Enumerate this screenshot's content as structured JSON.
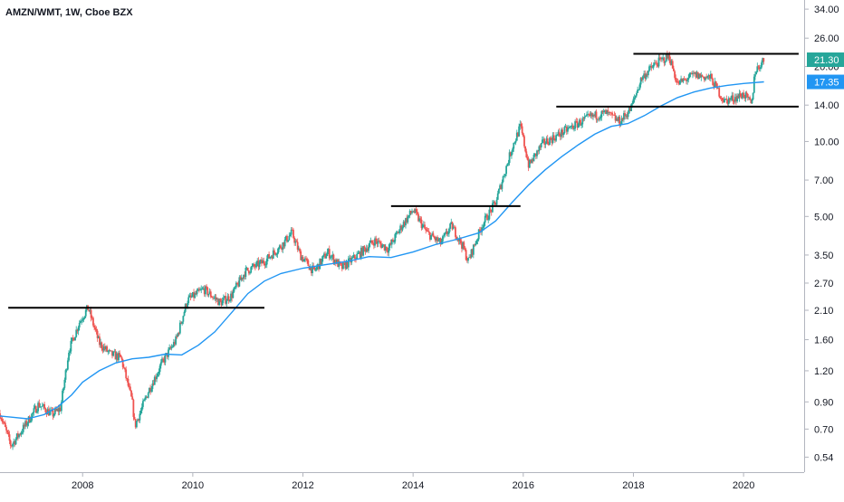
{
  "chart_data": {
    "type": "candlestick",
    "title": "AMZN/WMT, 1W, Cboe BZX",
    "xlabel": "",
    "ylabel": "",
    "scale": "log",
    "ylim": [
      0.47,
      37
    ],
    "xlim": [
      2006.5,
      2021.1
    ],
    "y_ticks": [
      "34.00",
      "26.00",
      "20.00",
      "14.00",
      "10.00",
      "7.00",
      "5.00",
      "3.50",
      "2.70",
      "2.10",
      "1.60",
      "1.20",
      "0.90",
      "0.70",
      "0.54"
    ],
    "x_ticks": [
      "2008",
      "2010",
      "2012",
      "2014",
      "2016",
      "2018",
      "2020"
    ],
    "grid": false,
    "price_series": [
      {
        "x": 2006.5,
        "y": 0.81
      },
      {
        "x": 2006.7,
        "y": 0.6
      },
      {
        "x": 2006.95,
        "y": 0.72
      },
      {
        "x": 2007.2,
        "y": 0.88
      },
      {
        "x": 2007.45,
        "y": 0.8
      },
      {
        "x": 2007.6,
        "y": 0.85
      },
      {
        "x": 2007.75,
        "y": 1.45
      },
      {
        "x": 2007.95,
        "y": 1.9
      },
      {
        "x": 2008.1,
        "y": 2.15
      },
      {
        "x": 2008.3,
        "y": 1.55
      },
      {
        "x": 2008.5,
        "y": 1.4
      },
      {
        "x": 2008.7,
        "y": 1.35
      },
      {
        "x": 2008.9,
        "y": 0.9
      },
      {
        "x": 2008.95,
        "y": 0.72
      },
      {
        "x": 2009.2,
        "y": 1.0
      },
      {
        "x": 2009.45,
        "y": 1.3
      },
      {
        "x": 2009.7,
        "y": 1.6
      },
      {
        "x": 2009.9,
        "y": 2.3
      },
      {
        "x": 2010.2,
        "y": 2.55
      },
      {
        "x": 2010.5,
        "y": 2.25
      },
      {
        "x": 2010.7,
        "y": 2.4
      },
      {
        "x": 2010.95,
        "y": 3.0
      },
      {
        "x": 2011.3,
        "y": 3.3
      },
      {
        "x": 2011.6,
        "y": 3.8
      },
      {
        "x": 2011.8,
        "y": 4.3
      },
      {
        "x": 2011.95,
        "y": 3.5
      },
      {
        "x": 2012.2,
        "y": 3.0
      },
      {
        "x": 2012.45,
        "y": 3.6
      },
      {
        "x": 2012.7,
        "y": 3.1
      },
      {
        "x": 2013.0,
        "y": 3.5
      },
      {
        "x": 2013.3,
        "y": 4.0
      },
      {
        "x": 2013.55,
        "y": 3.7
      },
      {
        "x": 2013.8,
        "y": 4.6
      },
      {
        "x": 2014.0,
        "y": 5.3
      },
      {
        "x": 2014.25,
        "y": 4.3
      },
      {
        "x": 2014.5,
        "y": 3.9
      },
      {
        "x": 2014.7,
        "y": 4.6
      },
      {
        "x": 2014.9,
        "y": 3.8
      },
      {
        "x": 2015.0,
        "y": 3.3
      },
      {
        "x": 2015.25,
        "y": 4.6
      },
      {
        "x": 2015.5,
        "y": 5.7
      },
      {
        "x": 2015.8,
        "y": 9.5
      },
      {
        "x": 2015.95,
        "y": 11.5
      },
      {
        "x": 2016.1,
        "y": 8.0
      },
      {
        "x": 2016.35,
        "y": 9.8
      },
      {
        "x": 2016.6,
        "y": 10.5
      },
      {
        "x": 2016.9,
        "y": 11.5
      },
      {
        "x": 2017.2,
        "y": 12.5
      },
      {
        "x": 2017.5,
        "y": 13.0
      },
      {
        "x": 2017.75,
        "y": 12.0
      },
      {
        "x": 2017.95,
        "y": 13.5
      },
      {
        "x": 2018.15,
        "y": 18.0
      },
      {
        "x": 2018.4,
        "y": 20.5
      },
      {
        "x": 2018.65,
        "y": 22.0
      },
      {
        "x": 2018.8,
        "y": 17.0
      },
      {
        "x": 2019.1,
        "y": 18.5
      },
      {
        "x": 2019.4,
        "y": 18.0
      },
      {
        "x": 2019.65,
        "y": 14.5
      },
      {
        "x": 2019.85,
        "y": 15.0
      },
      {
        "x": 2020.0,
        "y": 15.5
      },
      {
        "x": 2020.15,
        "y": 14.0
      },
      {
        "x": 2020.2,
        "y": 19.0
      },
      {
        "x": 2020.37,
        "y": 21.3
      }
    ],
    "ma_series": [
      {
        "x": 2006.5,
        "y": 0.79
      },
      {
        "x": 2006.75,
        "y": 0.78
      },
      {
        "x": 2007.0,
        "y": 0.77
      },
      {
        "x": 2007.3,
        "y": 0.8
      },
      {
        "x": 2007.55,
        "y": 0.86
      },
      {
        "x": 2007.8,
        "y": 0.96
      },
      {
        "x": 2008.0,
        "y": 1.08
      },
      {
        "x": 2008.3,
        "y": 1.2
      },
      {
        "x": 2008.6,
        "y": 1.29
      },
      {
        "x": 2008.9,
        "y": 1.34
      },
      {
        "x": 2009.2,
        "y": 1.36
      },
      {
        "x": 2009.5,
        "y": 1.4
      },
      {
        "x": 2009.8,
        "y": 1.39
      },
      {
        "x": 2010.1,
        "y": 1.52
      },
      {
        "x": 2010.4,
        "y": 1.72
      },
      {
        "x": 2010.7,
        "y": 2.05
      },
      {
        "x": 2011.0,
        "y": 2.45
      },
      {
        "x": 2011.3,
        "y": 2.75
      },
      {
        "x": 2011.6,
        "y": 2.95
      },
      {
        "x": 2012.0,
        "y": 3.1
      },
      {
        "x": 2012.4,
        "y": 3.2
      },
      {
        "x": 2012.8,
        "y": 3.3
      },
      {
        "x": 2013.2,
        "y": 3.45
      },
      {
        "x": 2013.6,
        "y": 3.42
      },
      {
        "x": 2014.0,
        "y": 3.6
      },
      {
        "x": 2014.4,
        "y": 3.85
      },
      {
        "x": 2014.8,
        "y": 4.05
      },
      {
        "x": 2015.2,
        "y": 4.3
      },
      {
        "x": 2015.5,
        "y": 4.8
      },
      {
        "x": 2015.8,
        "y": 5.7
      },
      {
        "x": 2016.1,
        "y": 6.7
      },
      {
        "x": 2016.4,
        "y": 7.7
      },
      {
        "x": 2016.7,
        "y": 8.7
      },
      {
        "x": 2017.0,
        "y": 9.7
      },
      {
        "x": 2017.3,
        "y": 10.7
      },
      {
        "x": 2017.6,
        "y": 11.5
      },
      {
        "x": 2017.9,
        "y": 11.8
      },
      {
        "x": 2018.2,
        "y": 12.7
      },
      {
        "x": 2018.5,
        "y": 13.9
      },
      {
        "x": 2018.8,
        "y": 15.0
      },
      {
        "x": 2019.1,
        "y": 15.8
      },
      {
        "x": 2019.4,
        "y": 16.4
      },
      {
        "x": 2019.7,
        "y": 16.8
      },
      {
        "x": 2020.0,
        "y": 17.1
      },
      {
        "x": 2020.37,
        "y": 17.35
      }
    ],
    "horizontal_levels": [
      {
        "y": 2.15,
        "x_start": 2006.65,
        "x_end": 2011.3
      },
      {
        "y": 5.5,
        "x_start": 2013.6,
        "x_end": 2015.95
      },
      {
        "y": 13.8,
        "x_start": 2016.6,
        "x_end": 2021.0
      },
      {
        "y": 22.5,
        "x_start": 2018.0,
        "x_end": 2021.0
      }
    ],
    "price_labels": [
      {
        "label": "21.30",
        "value": 21.3,
        "color": "#26a69a"
      },
      {
        "label": "17.35",
        "value": 17.35,
        "color": "#2196f3"
      }
    ]
  },
  "colors": {
    "up": "#26a69a",
    "down": "#ef5350",
    "ma": "#2196f3",
    "level": "#000000",
    "axis_text": "#131722",
    "axis_line": "#b2b5be"
  }
}
